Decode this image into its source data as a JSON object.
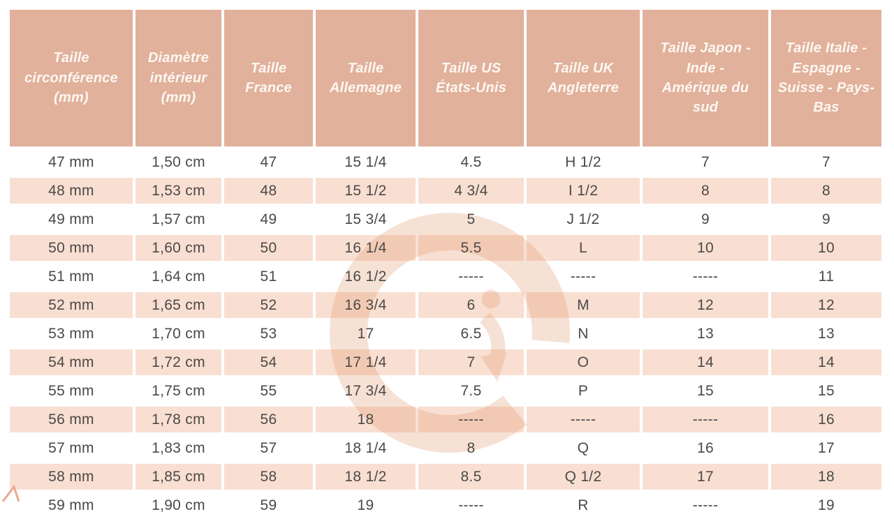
{
  "chart_data": {
    "type": "table",
    "striped_rows": true,
    "columns": [
      "Taille\ncirconférence\n(mm)",
      "Diamètre\nintérieur\n(mm)",
      "Taille\nFrance",
      "Taille\nAllemagne",
      "Taille US\nÉtats-Unis",
      "Taille UK\nAngleterre",
      "Taille Japon -\nInde -\nAmérique du\nsud",
      "Taille Italie -\nEspagne -\nSuisse - Pays-\nBas"
    ],
    "rows": [
      [
        "47 mm",
        "1,50 cm",
        "47",
        "15 1/4",
        "4.5",
        "H 1/2",
        "7",
        "7"
      ],
      [
        "48 mm",
        "1,53 cm",
        "48",
        "15 1/2",
        "4 3/4",
        "I 1/2",
        "8",
        "8"
      ],
      [
        "49 mm",
        "1,57 cm",
        "49",
        "15 3/4",
        "5",
        "J 1/2",
        "9",
        "9"
      ],
      [
        "50 mm",
        "1,60 cm",
        "50",
        "16 1/4",
        "5.5",
        "L",
        "10",
        "10"
      ],
      [
        "51 mm",
        "1,64 cm",
        "51",
        "16 1/2",
        "-----",
        "-----",
        "-----",
        "11"
      ],
      [
        "52 mm",
        "1,65 cm",
        "52",
        "16 3/4",
        "6",
        "M",
        "12",
        "12"
      ],
      [
        "53 mm",
        "1,70 cm",
        "53",
        "17",
        "6.5",
        "N",
        "13",
        "13"
      ],
      [
        "54 mm",
        "1,72 cm",
        "54",
        "17 1/4",
        "7",
        "O",
        "14",
        "14"
      ],
      [
        "55 mm",
        "1,75 cm",
        "55",
        "17 3/4",
        "7.5",
        "P",
        "15",
        "15"
      ],
      [
        "56 mm",
        "1,78 cm",
        "56",
        "18",
        "-----",
        "-----",
        "-----",
        "16"
      ],
      [
        "57 mm",
        "1,83 cm",
        "57",
        "18 1/4",
        "8",
        "Q",
        "16",
        "17"
      ],
      [
        "58 mm",
        "1,85 cm",
        "58",
        "18 1/2",
        "8.5",
        "Q 1/2",
        "17",
        "18"
      ],
      [
        "59 mm",
        "1,90 cm",
        "59",
        "19",
        "-----",
        "R",
        "-----",
        "19"
      ]
    ]
  },
  "watermark": {
    "letter": "G",
    "icon": "g-logo-watermark"
  },
  "colors": {
    "header_bg": "#e1b19b",
    "header_text": "#fdf7f2",
    "stripe": "#f8dfd2",
    "text": "#4c4947",
    "watermark": "#e8b293",
    "sparkle": "#e8a98f"
  }
}
